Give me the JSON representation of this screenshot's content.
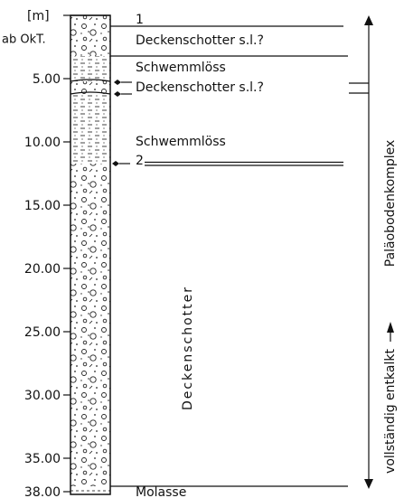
{
  "axis": {
    "unit": "[m]",
    "reference": "ab OkT.",
    "ticks": [
      "5.00",
      "10.00",
      "15.00",
      "20.00",
      "25.00",
      "30.00",
      "35.00",
      "38.00"
    ]
  },
  "layers": [
    {
      "label": "Deckenschotter s.l.?"
    },
    {
      "label": "Schwemmlöss"
    },
    {
      "label": "Deckenschotter s.l.?"
    },
    {
      "label": "Schwemmlöss"
    },
    {
      "label": "Deckenschotter"
    },
    {
      "label": "Molasse"
    }
  ],
  "markers": [
    "1",
    "2"
  ],
  "side_label": {
    "lower": "vollständig entkalkt",
    "upper": "Paläobodenkomplex"
  }
}
